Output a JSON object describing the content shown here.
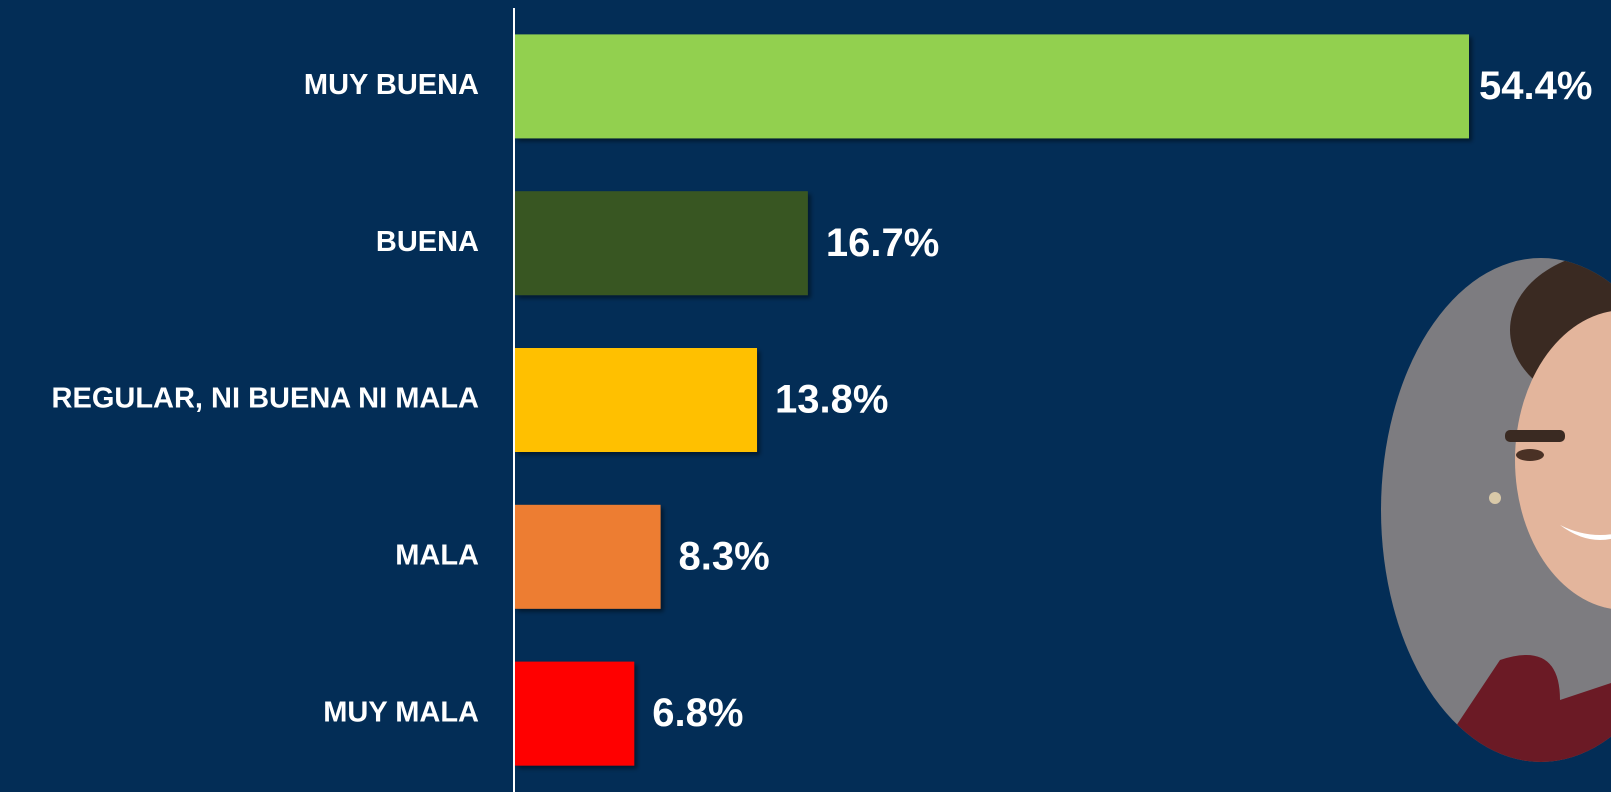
{
  "chart_data": {
    "type": "barh",
    "categories": [
      "MUY BUENA",
      "BUENA",
      "REGULAR, NI BUENA NI MALA",
      "MALA",
      "MUY MALA"
    ],
    "values": [
      54.4,
      16.7,
      13.8,
      8.3,
      6.8
    ],
    "value_labels": [
      "54.4%",
      "16.7%",
      "13.8%",
      "8.3%",
      "6.8%"
    ],
    "colors": [
      "#92d050",
      "#375623",
      "#ffc000",
      "#ed7d31",
      "#ff0000"
    ]
  }
}
